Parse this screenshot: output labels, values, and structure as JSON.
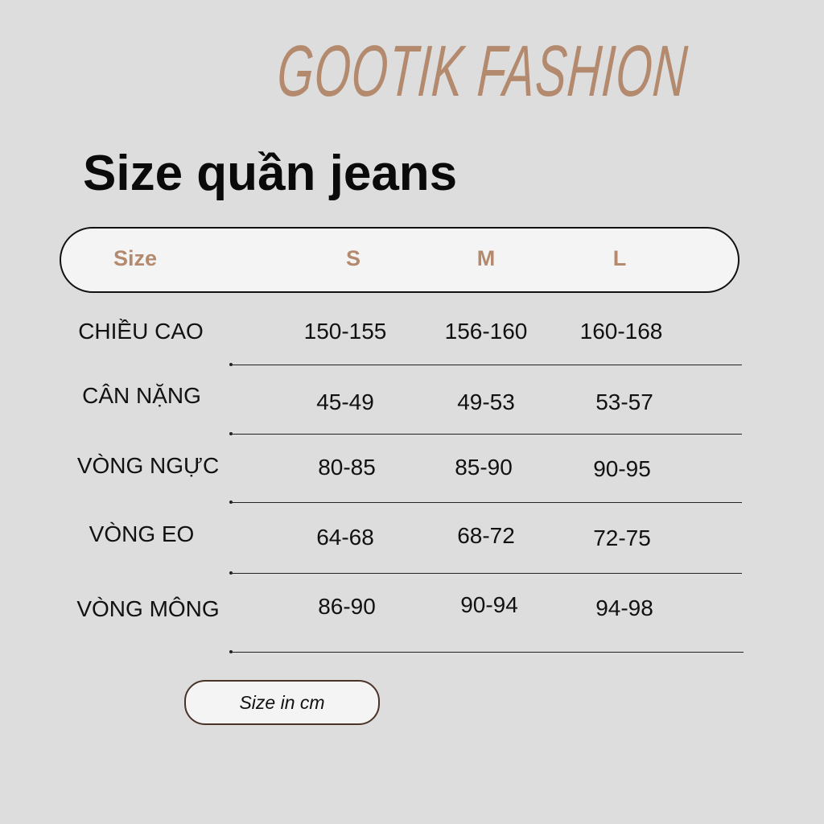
{
  "brand": "GOOTIK FASHION",
  "title": "Size quần jeans",
  "colors": {
    "accent": "#b48a6e",
    "background": "#dddddd",
    "header_bg": "#f4f4f4"
  },
  "table": {
    "headers": [
      "Size",
      "S",
      "M",
      "L"
    ],
    "rows": [
      {
        "label": "CHIỀU CAO",
        "values": [
          "150-155",
          "156-160",
          "160-168"
        ]
      },
      {
        "label": "CÂN NẶNG",
        "values": [
          "45-49",
          "49-53",
          "53-57"
        ]
      },
      {
        "label": "VÒNG NGỰC",
        "values": [
          "80-85",
          "85-90",
          "90-95"
        ]
      },
      {
        "label": "VÒNG EO",
        "values": [
          "64-68",
          "68-72",
          "72-75"
        ]
      },
      {
        "label": "VÒNG MÔNG",
        "values": [
          "86-90",
          "90-94",
          "94-98"
        ]
      }
    ]
  },
  "note": "Size in cm"
}
